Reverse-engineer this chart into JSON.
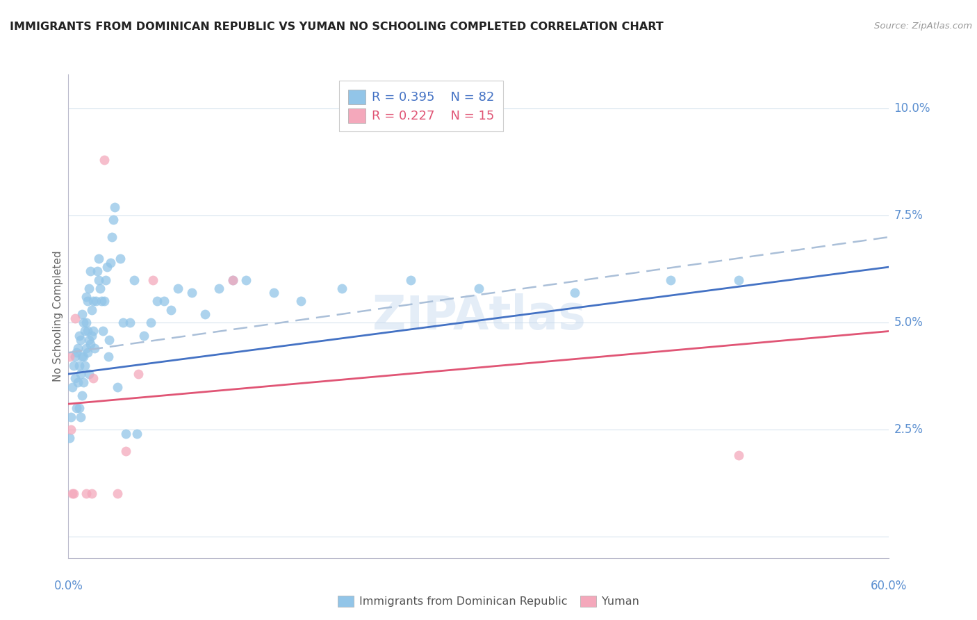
{
  "title": "IMMIGRANTS FROM DOMINICAN REPUBLIC VS YUMAN NO SCHOOLING COMPLETED CORRELATION CHART",
  "source": "Source: ZipAtlas.com",
  "ylabel": "No Schooling Completed",
  "yticks": [
    0.0,
    0.025,
    0.05,
    0.075,
    0.1
  ],
  "xlim": [
    0.0,
    0.6
  ],
  "ylim": [
    -0.005,
    0.108
  ],
  "blue_color": "#92C5E8",
  "pink_color": "#F4A8BB",
  "blue_line_color": "#4472C4",
  "pink_line_color": "#E05575",
  "dashed_line_color": "#AABFD8",
  "axis_color": "#5B8FD0",
  "grid_color": "#D8E4EE",
  "watermark": "ZIPAtlas",
  "legend_r_blue": "0.395",
  "legend_n_blue": "82",
  "legend_r_pink": "0.227",
  "legend_n_pink": "15",
  "blue_scatter_x": [
    0.001,
    0.002,
    0.003,
    0.004,
    0.005,
    0.005,
    0.006,
    0.006,
    0.007,
    0.007,
    0.008,
    0.008,
    0.008,
    0.009,
    0.009,
    0.009,
    0.01,
    0.01,
    0.01,
    0.011,
    0.011,
    0.011,
    0.012,
    0.012,
    0.013,
    0.013,
    0.013,
    0.014,
    0.014,
    0.014,
    0.015,
    0.015,
    0.015,
    0.016,
    0.016,
    0.017,
    0.017,
    0.018,
    0.018,
    0.019,
    0.02,
    0.021,
    0.022,
    0.022,
    0.023,
    0.024,
    0.025,
    0.026,
    0.027,
    0.028,
    0.029,
    0.03,
    0.031,
    0.032,
    0.033,
    0.034,
    0.036,
    0.038,
    0.04,
    0.042,
    0.045,
    0.048,
    0.05,
    0.055,
    0.06,
    0.065,
    0.07,
    0.075,
    0.08,
    0.09,
    0.1,
    0.11,
    0.12,
    0.13,
    0.15,
    0.17,
    0.2,
    0.25,
    0.3,
    0.37,
    0.44,
    0.49
  ],
  "blue_scatter_y": [
    0.023,
    0.028,
    0.035,
    0.04,
    0.037,
    0.042,
    0.03,
    0.043,
    0.036,
    0.044,
    0.03,
    0.04,
    0.047,
    0.028,
    0.038,
    0.046,
    0.033,
    0.042,
    0.052,
    0.036,
    0.042,
    0.05,
    0.04,
    0.048,
    0.044,
    0.05,
    0.056,
    0.043,
    0.048,
    0.055,
    0.038,
    0.046,
    0.058,
    0.045,
    0.062,
    0.047,
    0.053,
    0.048,
    0.055,
    0.044,
    0.055,
    0.062,
    0.06,
    0.065,
    0.058,
    0.055,
    0.048,
    0.055,
    0.06,
    0.063,
    0.042,
    0.046,
    0.064,
    0.07,
    0.074,
    0.077,
    0.035,
    0.065,
    0.05,
    0.024,
    0.05,
    0.06,
    0.024,
    0.047,
    0.05,
    0.055,
    0.055,
    0.053,
    0.058,
    0.057,
    0.052,
    0.058,
    0.06,
    0.06,
    0.057,
    0.055,
    0.058,
    0.06,
    0.058,
    0.057,
    0.06,
    0.06
  ],
  "pink_scatter_x": [
    0.001,
    0.002,
    0.003,
    0.004,
    0.005,
    0.013,
    0.017,
    0.018,
    0.026,
    0.036,
    0.042,
    0.051,
    0.062,
    0.12,
    0.49
  ],
  "pink_scatter_y": [
    0.042,
    0.025,
    0.01,
    0.01,
    0.051,
    0.01,
    0.01,
    0.037,
    0.088,
    0.01,
    0.02,
    0.038,
    0.06,
    0.06,
    0.019
  ],
  "blue_line_x0": 0.0,
  "blue_line_x1": 0.6,
  "blue_line_y0": 0.038,
  "blue_line_y1": 0.063,
  "dashed_line_x0": 0.0,
  "dashed_line_x1": 0.6,
  "dashed_line_y0": 0.043,
  "dashed_line_y1": 0.07,
  "pink_line_x0": 0.0,
  "pink_line_x1": 0.6,
  "pink_line_y0": 0.031,
  "pink_line_y1": 0.048
}
